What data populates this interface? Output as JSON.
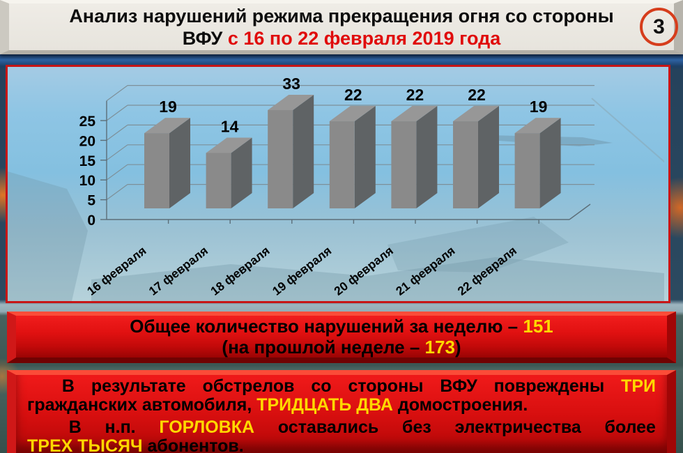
{
  "header": {
    "title_line1": "Анализ нарушений режима прекращения огня со стороны",
    "title_line2_prefix": "ВФУ ",
    "title_line2_red": "с 16 по 22 февраля 2019 года",
    "slide_number": "3"
  },
  "chart_data": {
    "type": "bar",
    "style": "3d-columns",
    "title": "",
    "xlabel": "",
    "ylabel": "",
    "categories": [
      "16 февраля",
      "17 февраля",
      "18 февраля",
      "19 февраля",
      "20 февраля",
      "21 февраля",
      "22 февраля"
    ],
    "values": [
      19,
      14,
      33,
      22,
      22,
      22,
      19
    ],
    "yticks": [
      0,
      5,
      10,
      15,
      20,
      25
    ],
    "ylim": [
      0,
      30
    ],
    "grid": true,
    "legend": false,
    "bar_color_front": "#8a8a8a",
    "bar_color_top": "#979797",
    "bar_color_side": "#5f6365",
    "value_label_color": "#000000",
    "gridline_color": "#7e9099"
  },
  "summary_banner": {
    "lines": [
      {
        "center": true,
        "segments": [
          {
            "t": "Общее количество нарушений за неделю – "
          },
          {
            "t": "151",
            "hl": true
          }
        ]
      },
      {
        "center": true,
        "segments": [
          {
            "t": "(на прошлой неделе – "
          },
          {
            "t": "173",
            "hl": true
          },
          {
            "t": ")"
          }
        ]
      }
    ]
  },
  "details_block": {
    "lines": [
      {
        "justify": true,
        "indent": true,
        "segments": [
          {
            "t": "В"
          },
          {
            "t": "результате"
          },
          {
            "t": "обстрелов"
          },
          {
            "t": "со"
          },
          {
            "t": "стороны"
          },
          {
            "t": "ВФУ"
          },
          {
            "t": "повреждены"
          },
          {
            "t": "ТРИ",
            "hl": true
          }
        ]
      },
      {
        "justify": false,
        "segments": [
          {
            "t": "гражданских автомобиля, "
          },
          {
            "t": "ТРИДЦАТЬ ДВА",
            "hl": true
          },
          {
            "t": " домостроения."
          }
        ]
      },
      {
        "justify": true,
        "indent": true,
        "gap": true,
        "segments": [
          {
            "t": "В"
          },
          {
            "t": "н.п."
          },
          {
            "t": "ГОРЛОВКА",
            "hl": true
          },
          {
            "t": "оставались"
          },
          {
            "t": "без"
          },
          {
            "t": "электричества"
          },
          {
            "t": "более"
          }
        ]
      },
      {
        "justify": false,
        "segments": [
          {
            "t": "ТРЕХ ТЫСЯЧ",
            "hl": true
          },
          {
            "t": " абонентов."
          }
        ]
      }
    ]
  },
  "colors": {
    "title_red": "#e00b0b",
    "panel_border_red": "#c81515",
    "banner_red": "#d80f0f",
    "highlight_yellow": "#ffd800",
    "badge_ring": "#d63d1c",
    "bar_gray": "#8a8a8a"
  }
}
